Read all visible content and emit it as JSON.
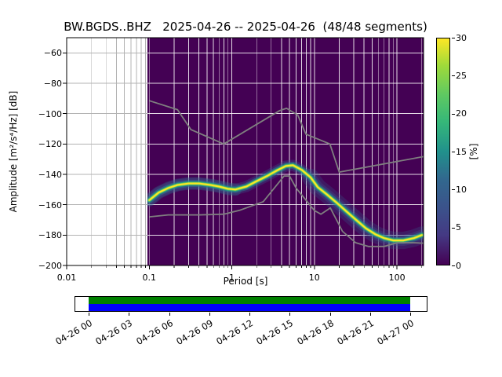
{
  "chart_data": {
    "type": "heatmap",
    "subtype": "ppsd-probability-density",
    "title": "BW.BGDS..BHZ   2025-04-26 -- 2025-04-26  (48/48 segments)",
    "xlabel": "Period [s]",
    "ylabel": "Amplitude [m²/s⁴/Hz] [dB]",
    "xscale": "log",
    "xlim": [
      0.01,
      210
    ],
    "ylim": [
      -200,
      -50
    ],
    "xticks": [
      0.01,
      0.1,
      1,
      10,
      100
    ],
    "yticks": [
      -200,
      -180,
      -160,
      -140,
      -120,
      -100,
      -80,
      -60
    ],
    "grid": true,
    "background_color": "#440154",
    "data_region": [
      0.095,
      210
    ],
    "colorbar": {
      "label": "[%]",
      "min": 0,
      "max": 30,
      "ticks": [
        0,
        5,
        10,
        15,
        20,
        25,
        30
      ],
      "colormap": "viridis"
    },
    "psd_mode": {
      "periods": [
        0.1,
        0.13,
        0.17,
        0.22,
        0.3,
        0.4,
        0.55,
        0.7,
        0.9,
        1.1,
        1.5,
        2.0,
        2.7,
        3.5,
        4.5,
        5.5,
        7.0,
        9.0,
        11.0,
        14.0,
        18.0,
        24.0,
        32.0,
        42.0,
        55.0,
        70.0,
        90.0,
        120.0,
        160.0,
        200.0
      ],
      "db": [
        -157,
        -152,
        -149,
        -147,
        -146,
        -146,
        -147,
        -148,
        -149.5,
        -150,
        -148,
        -144.5,
        -141,
        -137.5,
        -134.5,
        -134,
        -137,
        -142,
        -148.5,
        -153,
        -158,
        -164,
        -170,
        -175.5,
        -179.5,
        -182,
        -183.5,
        -183.5,
        -182,
        -180
      ]
    },
    "noise_models": {
      "nhnm": {
        "periods": [
          0.1,
          0.22,
          0.32,
          0.8,
          3.8,
          4.6,
          6.3,
          7.9,
          15.4,
          20.0,
          210.0
        ],
        "db": [
          -91.5,
          -97.4,
          -110.5,
          -120.0,
          -98.0,
          -96.5,
          -101.0,
          -113.5,
          -120.0,
          -138.5,
          -128.3
        ]
      },
      "nlnm": {
        "periods": [
          0.1,
          0.17,
          0.4,
          0.8,
          1.24,
          2.4,
          4.3,
          5.0,
          6.0,
          10.0,
          12.0,
          15.6,
          21.9,
          31.6,
          45.0,
          70.0,
          101.0,
          154.0,
          210.0
        ],
        "db": [
          -168.0,
          -166.7,
          -166.7,
          -166.2,
          -163.7,
          -158.0,
          -141.1,
          -141.1,
          -149.0,
          -163.8,
          -166.2,
          -162.1,
          -177.5,
          -185.0,
          -187.5,
          -187.5,
          -185.0,
          -185.0,
          -185.3
        ]
      }
    }
  },
  "timeline": {
    "labels": [
      "04-26 00",
      "04-26 03",
      "04-26 06",
      "04-26 09",
      "04-26 12",
      "04-26 15",
      "04-26 18",
      "04-26 21",
      "04-27 00"
    ],
    "colors": {
      "data_available": "#008000",
      "data_used": "#0000ff"
    }
  }
}
